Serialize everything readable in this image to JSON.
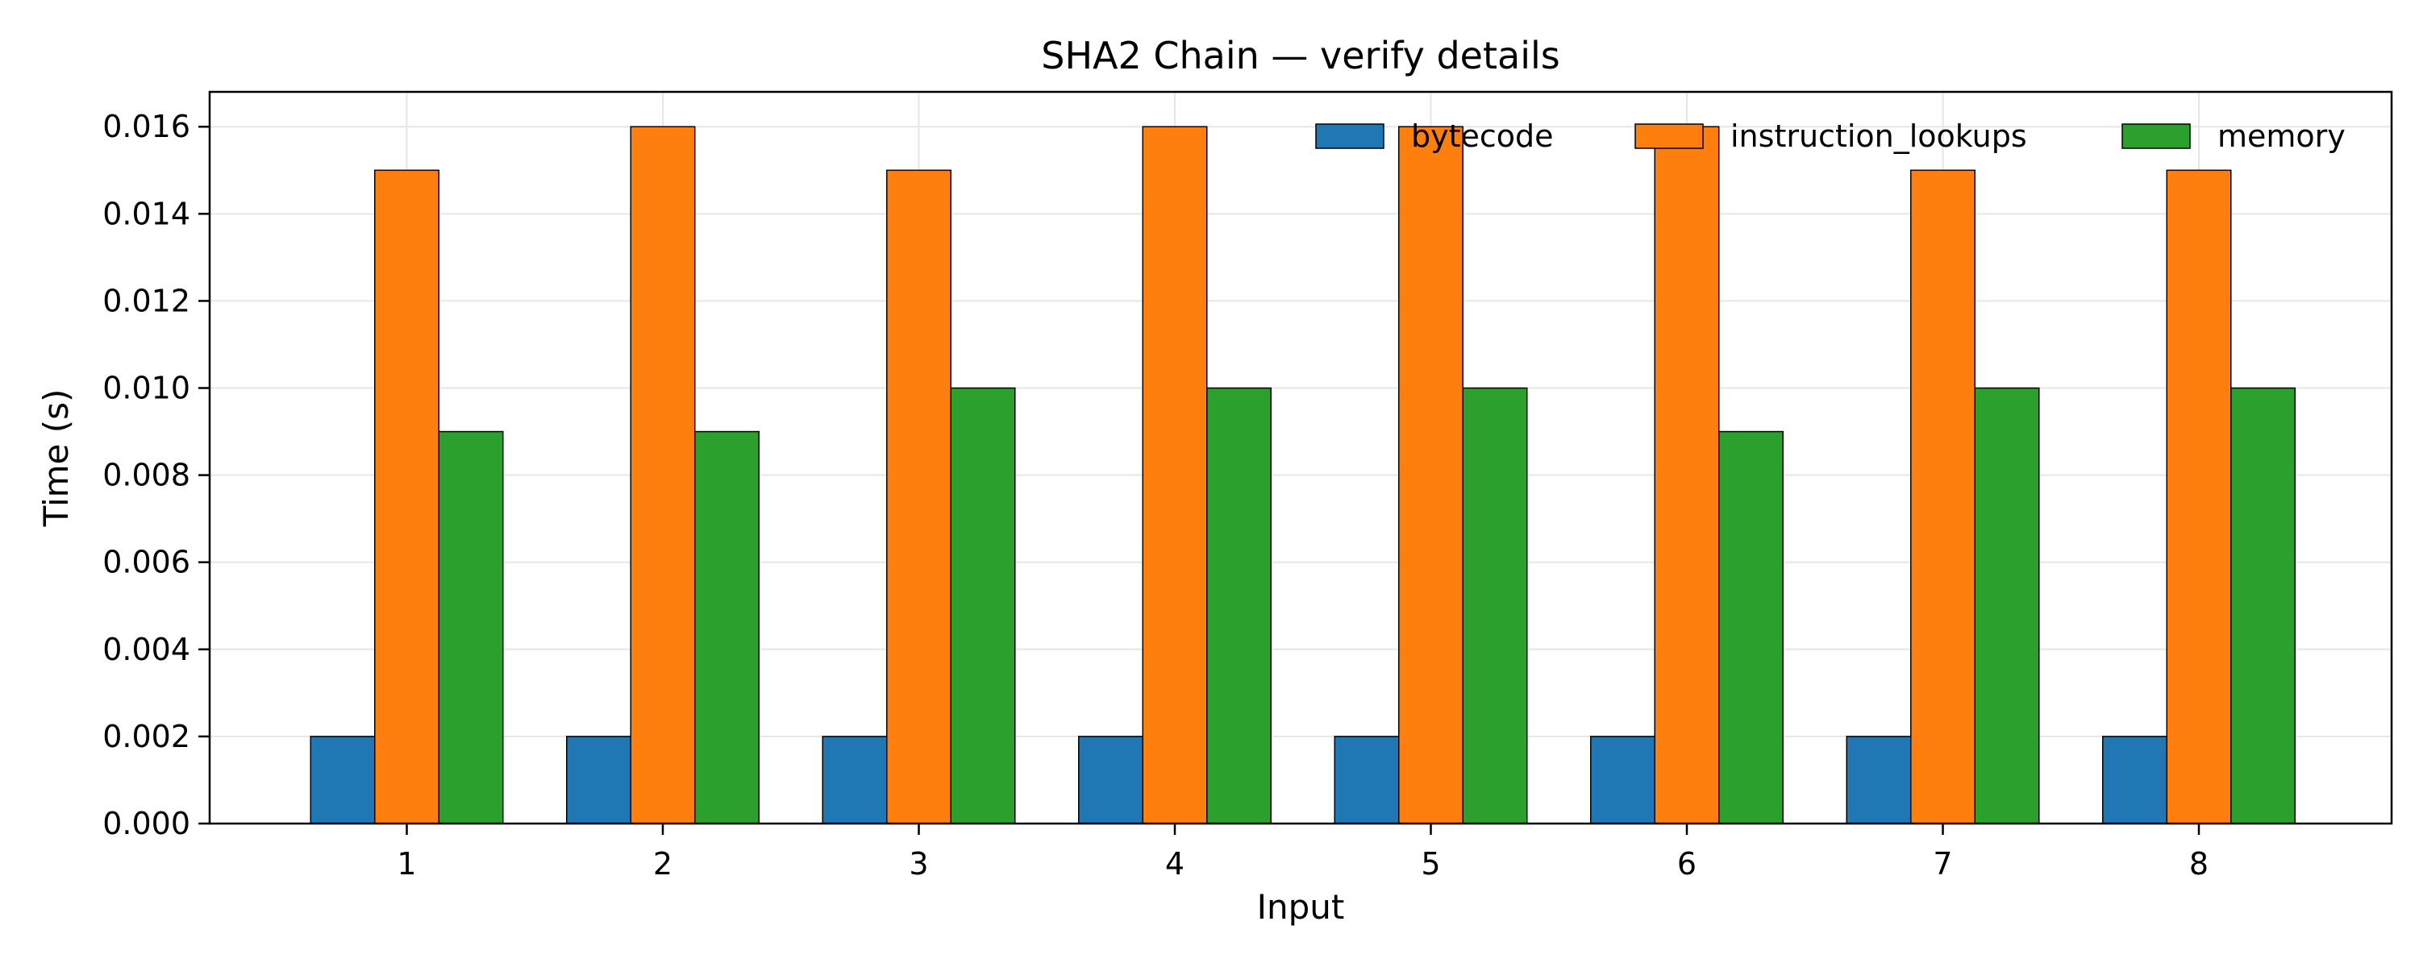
{
  "chart_data": {
    "type": "bar",
    "title": "SHA2 Chain — verify details",
    "xlabel": "Input",
    "ylabel": "Time (s)",
    "categories": [
      "1",
      "2",
      "3",
      "4",
      "5",
      "6",
      "7",
      "8"
    ],
    "series": [
      {
        "name": "bytecode",
        "color": "#1f77b4",
        "values": [
          0.002,
          0.002,
          0.002,
          0.002,
          0.002,
          0.002,
          0.002,
          0.002
        ]
      },
      {
        "name": "instruction_lookups",
        "color": "#ff7f0e",
        "values": [
          0.015,
          0.016,
          0.015,
          0.016,
          0.016,
          0.016,
          0.015,
          0.015
        ]
      },
      {
        "name": "memory",
        "color": "#2ca02c",
        "values": [
          0.009,
          0.009,
          0.01,
          0.01,
          0.01,
          0.009,
          0.01,
          0.01
        ]
      }
    ],
    "ylim": [
      0,
      0.0168
    ],
    "yticks": [
      "0.000",
      "0.002",
      "0.004",
      "0.006",
      "0.008",
      "0.010",
      "0.012",
      "0.014",
      "0.016"
    ],
    "grid": true,
    "legend_position": "top-right"
  }
}
